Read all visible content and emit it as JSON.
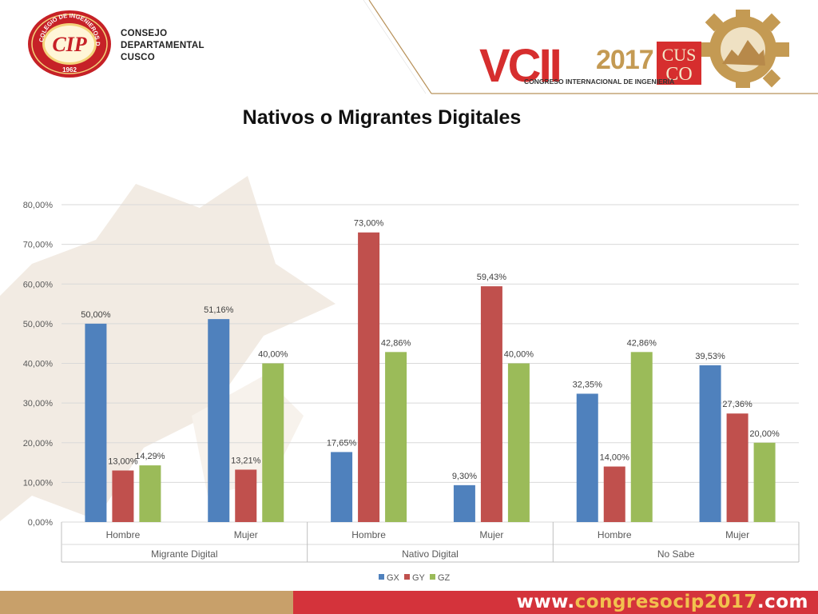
{
  "header": {
    "council_lines": [
      "CONSEJO",
      "DEPARTAMENTAL",
      "CUSCO"
    ],
    "seal": {
      "ring_text": "COLEGIO DE INGENIEROS DEL PERU",
      "initials": "CIP",
      "year": "1962"
    },
    "congress": {
      "brand_left": "VCII",
      "year": "2017",
      "city_top": "CUS",
      "city_bottom": "CO",
      "subtitle": "CONGRESO INTERNACIONAL DE INGENIERÍA"
    }
  },
  "title": "Nativos o Migrantes Digitales",
  "footer": {
    "url_prefix": "www.",
    "url_mid": "congresocip2017",
    "url_suffix": ".com"
  },
  "colors": {
    "GX": "#4f81bd",
    "GY": "#c0504d",
    "GZ": "#9bbb59",
    "footer_tan": "#c8a06a",
    "footer_red": "#d4333b",
    "congress_red": "#d62e2e",
    "congress_gold": "#c49a53"
  },
  "chart_data": {
    "type": "bar",
    "groups": [
      {
        "label": "Migrante Digital",
        "categories": [
          "Hombre",
          "Mujer"
        ]
      },
      {
        "label": "Nativo Digital",
        "categories": [
          "Hombre",
          "Mujer"
        ]
      },
      {
        "label": "No Sabe",
        "categories": [
          "Hombre",
          "Mujer"
        ]
      }
    ],
    "series": [
      {
        "name": "GX",
        "values": [
          50.0,
          51.16,
          17.65,
          9.3,
          32.35,
          39.53
        ],
        "labels": [
          "50,00%",
          "51,16%",
          "17,65%",
          "9,30%",
          "32,35%",
          "39,53%"
        ]
      },
      {
        "name": "GY",
        "values": [
          13.0,
          13.21,
          73.0,
          59.43,
          14.0,
          27.36
        ],
        "labels": [
          "13,00%",
          "13,21%",
          "73,00%",
          "59,43%",
          "14,00%",
          "27,36%"
        ]
      },
      {
        "name": "GZ",
        "values": [
          14.29,
          40.0,
          42.86,
          40.0,
          42.86,
          20.0
        ],
        "labels": [
          "14,29%",
          "40,00%",
          "42,86%",
          "40,00%",
          "42,86%",
          "20,00%"
        ]
      }
    ],
    "ylim": [
      0,
      80
    ],
    "yticks": [
      0,
      10,
      20,
      30,
      40,
      50,
      60,
      70,
      80
    ],
    "ytick_labels": [
      "0,00%",
      "10,00%",
      "20,00%",
      "30,00%",
      "40,00%",
      "50,00%",
      "60,00%",
      "70,00%",
      "80,00%"
    ],
    "grid": true,
    "legend_position": "bottom"
  }
}
